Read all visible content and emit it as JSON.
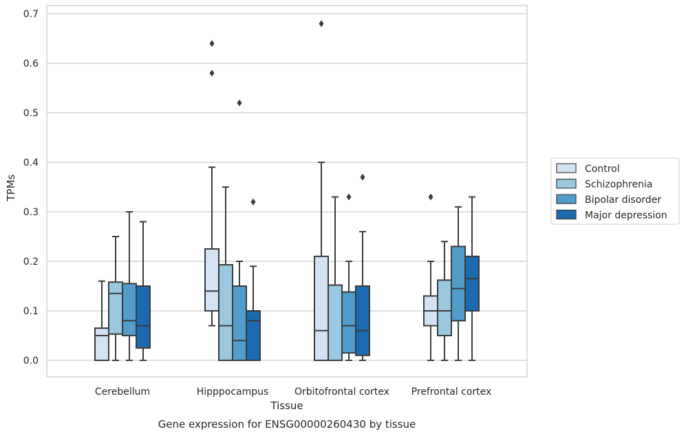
{
  "chart_data": {
    "type": "box",
    "caption": "Gene expression for ENSG00000260430 by tissue",
    "xlabel": "Tissue",
    "ylabel": "TPMs",
    "ylim": [
      -0.033,
      0.715
    ],
    "yticks": [
      0.0,
      0.1,
      0.2,
      0.3,
      0.4,
      0.5,
      0.6,
      0.7
    ],
    "ytick_labels": [
      "0.0",
      "0.1",
      "0.2",
      "0.3",
      "0.4",
      "0.5",
      "0.6",
      "0.7"
    ],
    "grid": "horizontal",
    "legend_position": "right",
    "categories": [
      "Cerebellum",
      "Hipppocampus",
      "Orbitofrontal cortex",
      "Prefrontal cortex"
    ],
    "series": [
      {
        "name": "Control",
        "color": "#d3e3f3",
        "boxes": [
          {
            "min": 0.0,
            "q1": 0.0,
            "median": 0.05,
            "q3": 0.065,
            "max": 0.16,
            "outliers": []
          },
          {
            "min": 0.07,
            "q1": 0.1,
            "median": 0.14,
            "q3": 0.225,
            "max": 0.39,
            "outliers": [
              0.58,
              0.64
            ]
          },
          {
            "min": 0.0,
            "q1": 0.0,
            "median": 0.06,
            "q3": 0.21,
            "max": 0.4,
            "outliers": [
              0.68
            ]
          },
          {
            "min": 0.0,
            "q1": 0.07,
            "median": 0.1,
            "q3": 0.13,
            "max": 0.2,
            "outliers": [
              0.33
            ]
          }
        ]
      },
      {
        "name": "Schizophrenia",
        "color": "#9ac8e0",
        "boxes": [
          {
            "min": 0.0,
            "q1": 0.053,
            "median": 0.135,
            "q3": 0.158,
            "max": 0.25,
            "outliers": []
          },
          {
            "min": 0.0,
            "q1": 0.0,
            "median": 0.07,
            "q3": 0.193,
            "max": 0.35,
            "outliers": []
          },
          {
            "min": 0.0,
            "q1": 0.0,
            "median": 0.0,
            "q3": 0.152,
            "max": 0.33,
            "outliers": []
          },
          {
            "min": 0.0,
            "q1": 0.05,
            "median": 0.1,
            "q3": 0.162,
            "max": 0.24,
            "outliers": []
          }
        ]
      },
      {
        "name": "Bipolar disorder",
        "color": "#529dcc",
        "boxes": [
          {
            "min": 0.0,
            "q1": 0.05,
            "median": 0.08,
            "q3": 0.155,
            "max": 0.3,
            "outliers": []
          },
          {
            "min": 0.0,
            "q1": 0.0,
            "median": 0.04,
            "q3": 0.15,
            "max": 0.2,
            "outliers": [
              0.52
            ]
          },
          {
            "min": 0.0,
            "q1": 0.015,
            "median": 0.07,
            "q3": 0.138,
            "max": 0.2,
            "outliers": [
              0.33
            ]
          },
          {
            "min": 0.0,
            "q1": 0.08,
            "median": 0.145,
            "q3": 0.23,
            "max": 0.31,
            "outliers": []
          }
        ]
      },
      {
        "name": "Major depression",
        "color": "#1c6aaf",
        "boxes": [
          {
            "min": 0.0,
            "q1": 0.025,
            "median": 0.07,
            "q3": 0.15,
            "max": 0.28,
            "outliers": []
          },
          {
            "min": 0.0,
            "q1": 0.0,
            "median": 0.08,
            "q3": 0.1,
            "max": 0.19,
            "outliers": [
              0.32
            ]
          },
          {
            "min": 0.0,
            "q1": 0.01,
            "median": 0.06,
            "q3": 0.15,
            "max": 0.26,
            "outliers": [
              0.37
            ]
          },
          {
            "min": 0.0,
            "q1": 0.1,
            "median": 0.165,
            "q3": 0.21,
            "max": 0.33,
            "outliers": []
          }
        ]
      }
    ]
  }
}
